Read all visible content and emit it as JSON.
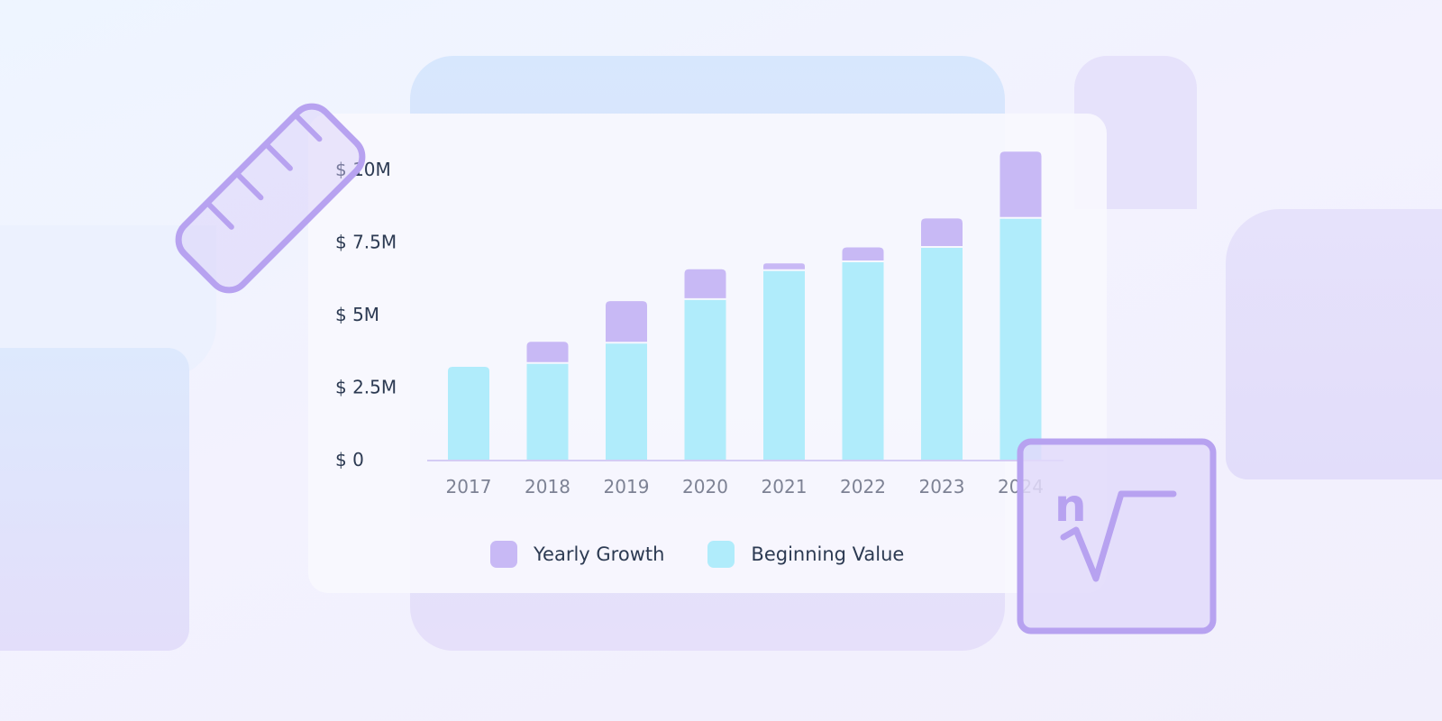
{
  "colors": {
    "growth": "#c8b9f5",
    "beginning": "#b0ecfb",
    "icon_stroke": "#b7a2f0",
    "axis": "#c8bdf0"
  },
  "decorations": {
    "left_icon": "ruler-icon",
    "right_icon": "nth-root-icon",
    "root_index": "n"
  },
  "chart_data": {
    "type": "bar",
    "stacked": true,
    "categories": [
      "2017",
      "2018",
      "2019",
      "2020",
      "2021",
      "2022",
      "2023",
      "2024"
    ],
    "series": [
      {
        "name": "Beginning Value",
        "values": [
          3.2,
          3.3,
          4.0,
          5.5,
          6.5,
          6.8,
          7.3,
          8.3
        ]
      },
      {
        "name": "Yearly Growth",
        "values": [
          0.0,
          0.7,
          1.4,
          1.0,
          0.2,
          0.45,
          0.95,
          2.25
        ]
      }
    ],
    "y_ticks": [
      {
        "value": 0,
        "label": "$ 0"
      },
      {
        "value": 2.5,
        "label": "$ 2.5M"
      },
      {
        "value": 5,
        "label": "$ 5M"
      },
      {
        "value": 7.5,
        "label": "$ 7.5M"
      },
      {
        "value": 10,
        "label": "$ 10M"
      }
    ],
    "ylim": [
      0,
      10
    ],
    "legend_position": "bottom-center",
    "grid": false
  }
}
